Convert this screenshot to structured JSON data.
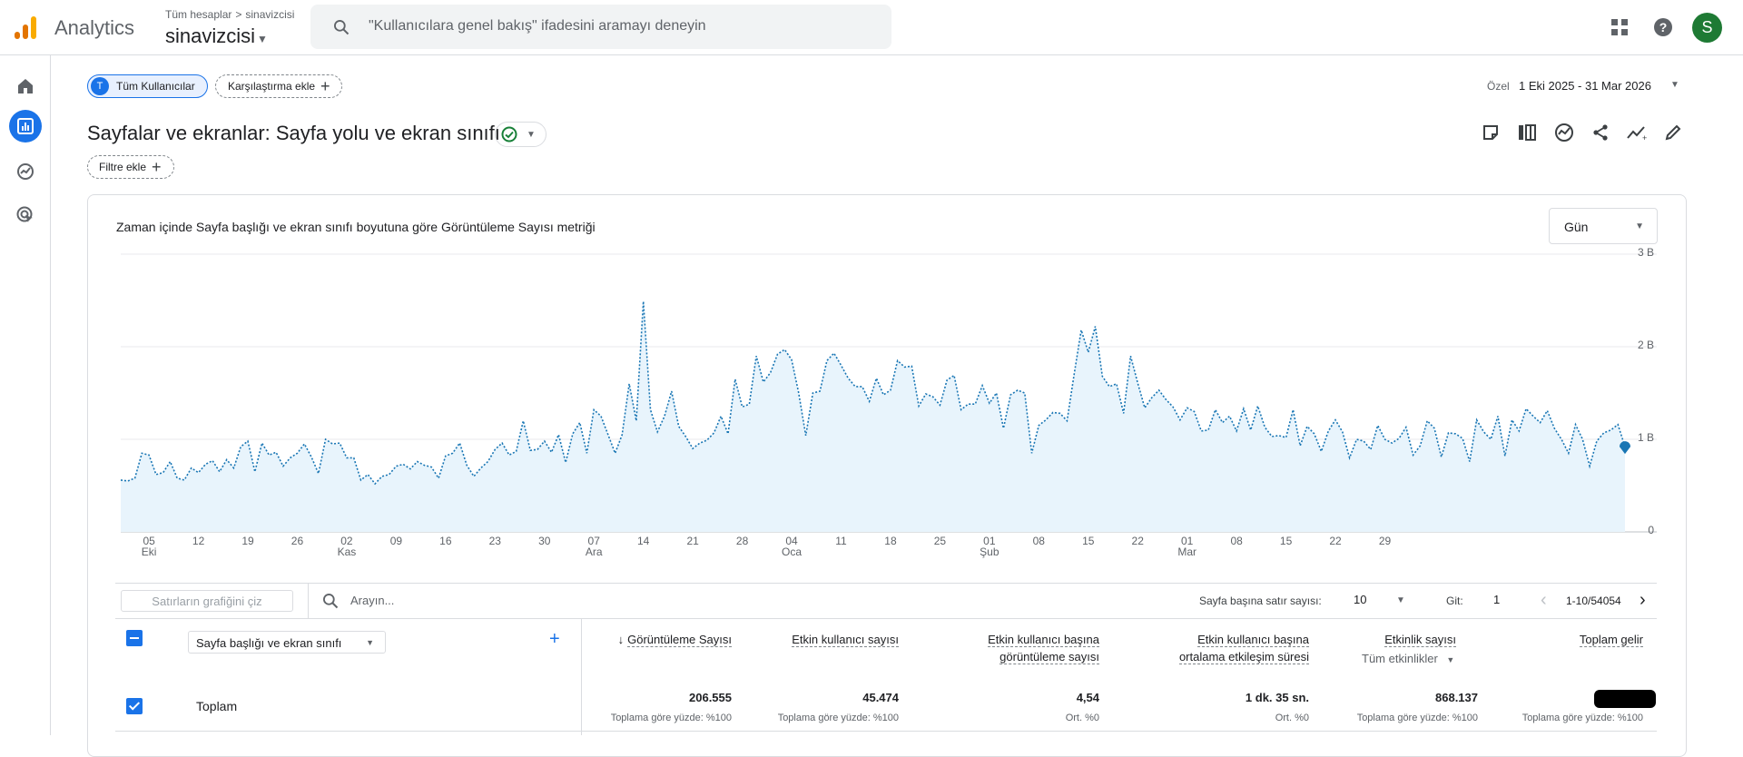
{
  "header": {
    "app_name": "Analytics",
    "breadcrumb_root": "Tüm hesaplar",
    "breadcrumb_sep": ">",
    "breadcrumb_property": "sinavizcisi",
    "account_name": "sinavizcisi",
    "search_placeholder": "\"Kullanıcılara genel bakış\" ifadesini aramayı deneyin",
    "avatar_letter": "S",
    "icons": [
      "apps-grid-icon",
      "help-icon"
    ]
  },
  "rail": {
    "items": [
      {
        "name": "home-icon",
        "active": false
      },
      {
        "name": "reports-icon",
        "active": true
      },
      {
        "name": "explore-icon",
        "active": false
      },
      {
        "name": "advertising-icon",
        "active": false
      }
    ]
  },
  "comparison": {
    "segment_badge": "T",
    "segment_label": "Tüm Kullanıcılar",
    "add_comparison": "Karşılaştırma ekle",
    "date_label": "Özel",
    "date_range": "1 Eki 2025 - 31 Mar 2026"
  },
  "report": {
    "title": "Sayfalar ve ekranlar: Sayfa yolu ve ekran sınıfı",
    "add_filter": "Filtre ekle",
    "tools": [
      "notes-icon",
      "compare-columns-icon",
      "insights-icon",
      "share-icon",
      "trend-icon",
      "edit-icon"
    ]
  },
  "chart_data": {
    "type": "area",
    "title": "Zaman içinde Sayfa başlığı ve ekran sınıfı boyutuna göre Görüntüleme Sayısı metriği",
    "granularity": "Gün",
    "y_ticks": [
      "0",
      "1 B",
      "2 B",
      "3 B"
    ],
    "ylim": [
      0,
      3000
    ],
    "x_ticks": [
      {
        "day": "05",
        "month": "Eki"
      },
      {
        "day": "12",
        "month": ""
      },
      {
        "day": "19",
        "month": ""
      },
      {
        "day": "26",
        "month": ""
      },
      {
        "day": "02",
        "month": "Kas"
      },
      {
        "day": "09",
        "month": ""
      },
      {
        "day": "16",
        "month": ""
      },
      {
        "day": "23",
        "month": ""
      },
      {
        "day": "30",
        "month": ""
      },
      {
        "day": "07",
        "month": "Ara"
      },
      {
        "day": "14",
        "month": ""
      },
      {
        "day": "21",
        "month": ""
      },
      {
        "day": "28",
        "month": ""
      },
      {
        "day": "04",
        "month": "Oca"
      },
      {
        "day": "11",
        "month": ""
      },
      {
        "day": "18",
        "month": ""
      },
      {
        "day": "25",
        "month": ""
      },
      {
        "day": "01",
        "month": "Şub"
      },
      {
        "day": "08",
        "month": ""
      },
      {
        "day": "15",
        "month": ""
      },
      {
        "day": "22",
        "month": ""
      },
      {
        "day": "01",
        "month": "Mar"
      },
      {
        "day": "08",
        "month": ""
      },
      {
        "day": "15",
        "month": ""
      },
      {
        "day": "22",
        "month": ""
      },
      {
        "day": "29",
        "month": ""
      }
    ],
    "series": [
      {
        "x_start": "2025-10-01",
        "values": [
          560,
          550,
          580,
          850,
          830,
          620,
          640,
          760,
          580,
          560,
          690,
          640,
          730,
          770,
          650,
          780,
          690,
          920,
          980,
          650,
          960,
          830,
          860,
          710,
          800,
          850,
          950,
          810,
          630,
          1000,
          950,
          960,
          800,
          800,
          560,
          620,
          520,
          600,
          620,
          710,
          730,
          680,
          760,
          720,
          700,
          580,
          820,
          850,
          960,
          720,
          600,
          690,
          760,
          890,
          960,
          830,
          870,
          1200,
          880,
          890,
          980,
          860,
          1050,
          750,
          1060,
          1180,
          850,
          1320,
          1250,
          1050,
          850,
          1050,
          1600,
          1200,
          2490,
          1320,
          1080,
          1250,
          1520,
          1140,
          1030,
          900,
          960,
          990,
          1070,
          1250,
          1060,
          1650,
          1350,
          1380,
          1900,
          1620,
          1720,
          1920,
          1970,
          1860,
          1500,
          1040,
          1500,
          1520,
          1850,
          1930,
          1800,
          1660,
          1570,
          1570,
          1410,
          1660,
          1480,
          1530,
          1850,
          1780,
          1790,
          1360,
          1490,
          1460,
          1370,
          1640,
          1690,
          1320,
          1380,
          1380,
          1580,
          1390,
          1500,
          1120,
          1480,
          1530,
          1500,
          850,
          1150,
          1210,
          1290,
          1280,
          1200,
          1700,
          2180,
          1940,
          2220,
          1680,
          1570,
          1600,
          1280,
          1900,
          1610,
          1340,
          1450,
          1530,
          1430,
          1350,
          1210,
          1340,
          1300,
          1090,
          1100,
          1320,
          1180,
          1250,
          1090,
          1330,
          1100,
          1360,
          1130,
          1030,
          1040,
          1020,
          1320,
          930,
          1140,
          1060,
          870,
          1090,
          1210,
          1080,
          800,
          1000,
          980,
          890,
          1150,
          1000,
          960,
          1010,
          1130,
          830,
          930,
          1200,
          1120,
          810,
          1070,
          1060,
          1010,
          760,
          1210,
          1080,
          1000,
          1250,
          820,
          1210,
          1090,
          1330,
          1250,
          1180,
          1310,
          1120,
          1000,
          850,
          1160,
          1000,
          710,
          980,
          1070,
          1100,
          1160,
          920
        ],
        "color": "#1976b4"
      }
    ]
  },
  "table": {
    "plot_rows": "Satırların grafiğini çiz",
    "search_placeholder": "Arayın...",
    "rows_per_page_label": "Sayfa başına satır sayısı:",
    "rows_per_page": "10",
    "goto_label": "Git:",
    "goto_value": "1",
    "page_range": "1-10/54054",
    "dimension": "Sayfa başlığı ve ekran sınıfı",
    "columns": [
      {
        "line1": "Görüntüleme Sayısı",
        "line2": "",
        "sorted": true
      },
      {
        "line1": "Etkin kullanıcı sayısı",
        "line2": "",
        "sorted": false
      },
      {
        "line1": "Etkin kullanıcı başına",
        "line2": "görüntüleme sayısı",
        "sorted": false
      },
      {
        "line1": "Etkin kullanıcı başına",
        "line2": "ortalama etkileşim süresi",
        "sorted": false
      },
      {
        "line1": "Etkinlik sayısı",
        "line2": "",
        "sorted": false
      },
      {
        "line1": "Toplam gelir",
        "line2": "",
        "sorted": false
      }
    ],
    "event_selector": "Tüm etkinlikler",
    "totals": {
      "label": "Toplam",
      "values": [
        "206.555",
        "45.474",
        "4,54",
        "1 dk. 35 sn.",
        "868.137",
        ""
      ],
      "subs": [
        "Toplama göre yüzde: %100",
        "Toplama göre yüzde: %100",
        "Ort. %0",
        "Ort. %0",
        "Toplama göre yüzde: %100",
        "Toplama göre yüzde: %100"
      ]
    }
  }
}
